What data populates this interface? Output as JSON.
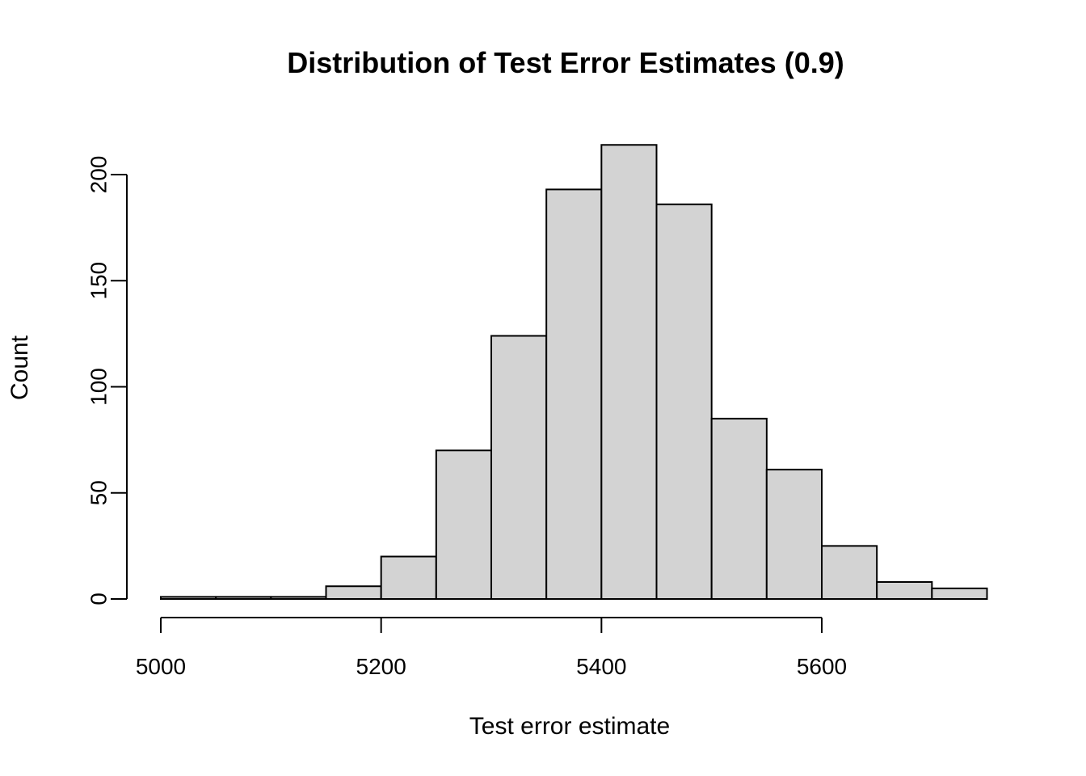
{
  "chart_data": {
    "type": "bar",
    "subtype": "histogram",
    "title": "Distribution of Test Error Estimates (0.9)",
    "xlabel": "Test error estimate",
    "ylabel": "Count",
    "bin_width": 50,
    "bin_edges": [
      5000,
      5050,
      5100,
      5150,
      5200,
      5250,
      5300,
      5350,
      5400,
      5450,
      5500,
      5550,
      5600,
      5650,
      5700,
      5750
    ],
    "counts": [
      1,
      1,
      1,
      6,
      20,
      70,
      124,
      193,
      214,
      186,
      85,
      61,
      25,
      8,
      5
    ],
    "x_ticks": [
      5000,
      5200,
      5400,
      5600
    ],
    "y_ticks": [
      0,
      50,
      100,
      150,
      200
    ],
    "xlim": [
      5000,
      5750
    ],
    "ylim": [
      0,
      214
    ],
    "grid": false,
    "legend": "none",
    "bar_fill": "#d3d3d3",
    "bar_stroke": "#000000",
    "axis_color": "#000000",
    "text_color": "#000000",
    "background": "#ffffff"
  }
}
